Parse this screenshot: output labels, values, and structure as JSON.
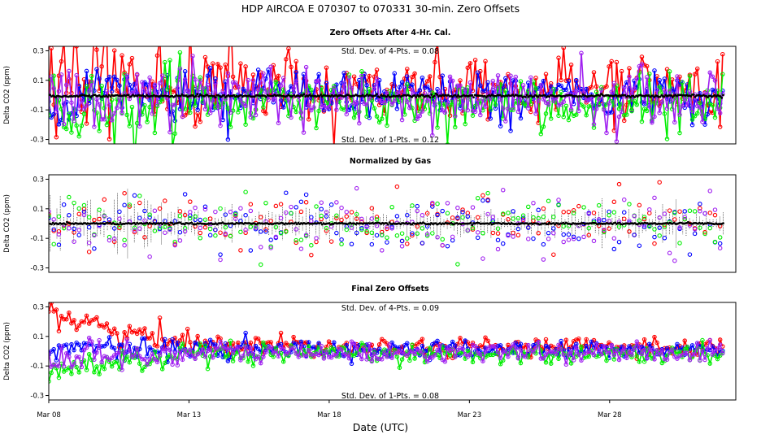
{
  "chart_data": {
    "type": "scatter",
    "title": "HDP   AIRCOA E   070307 to 070331   30-min. Zero Offsets",
    "xlabel": "Date (UTC)",
    "xlim": [
      8.0,
      32.5
    ],
    "x_ticks": [
      8,
      13,
      18,
      23,
      28
    ],
    "x_tick_labels": [
      "Mar 08",
      "Mar 13",
      "Mar 18",
      "Mar 23",
      "Mar 28"
    ],
    "series_colors": {
      "red": "#ff0000",
      "blue": "#0000ff",
      "green": "#00ee00",
      "purple": "#a020f0",
      "black": "#000000"
    },
    "panels": [
      {
        "title": "Zero Offsets After 4-Hr. Cal.",
        "ylabel": "Delta CO2 (ppm)",
        "ylim": [
          -0.33,
          0.33
        ],
        "y_ticks": [
          -0.3,
          -0.1,
          0.1,
          0.3
        ],
        "y_tick_labels": [
          "-0.3",
          "-0.1",
          "0.1",
          "0.3"
        ],
        "annotations": [
          "Std. Dev. of 4-Pts. = 0.08",
          "Std. Dev. of 1-Pts. = 0.12"
        ],
        "series": [
          {
            "name": "red",
            "spread": 0.11,
            "offset": 0.05,
            "sd_start": 0.22
          },
          {
            "name": "blue",
            "spread": 0.08,
            "offset": 0.0,
            "sd_start": 0.1
          },
          {
            "name": "green",
            "spread": 0.09,
            "offset": -0.06,
            "sd_start": 0.16
          },
          {
            "name": "purple",
            "spread": 0.09,
            "offset": -0.02,
            "sd_start": 0.12
          },
          {
            "name": "black",
            "spread": 0.004,
            "offset": -0.005,
            "sd_start": 0.004
          }
        ]
      },
      {
        "title": "Normalized by Gas",
        "ylabel": "Delta CO2 (ppm)",
        "ylim": [
          -0.33,
          0.33
        ],
        "y_ticks": [
          -0.3,
          -0.1,
          0.1,
          0.3
        ],
        "y_tick_labels": [
          "-0.3",
          "-0.1",
          "0.1",
          "0.3"
        ],
        "annotations": [],
        "series": [
          {
            "name": "red",
            "spread": 0.1,
            "offset": 0.0,
            "sd_start": 0.1
          },
          {
            "name": "blue",
            "spread": 0.1,
            "offset": 0.0,
            "sd_start": 0.1
          },
          {
            "name": "green",
            "spread": 0.1,
            "offset": 0.0,
            "sd_start": 0.1
          },
          {
            "name": "purple",
            "spread": 0.1,
            "offset": 0.0,
            "sd_start": 0.1
          },
          {
            "name": "black",
            "spread": 0.003,
            "offset": 0.0,
            "sd_start": 0.003
          }
        ]
      },
      {
        "title": "Final Zero Offsets",
        "ylabel": "Delta CO2 (ppm)",
        "ylim": [
          -0.33,
          0.33
        ],
        "y_ticks": [
          -0.3,
          -0.1,
          0.1,
          0.3
        ],
        "y_tick_labels": [
          "-0.3",
          "-0.1",
          "0.1",
          "0.3"
        ],
        "annotations": [
          "Std. Dev. of 4-Pts. = 0.09",
          "Std. Dev. of 1-Pts. = 0.08"
        ],
        "series": [
          {
            "name": "red",
            "spread": 0.03,
            "offset": 0.03,
            "start_offset": 0.3,
            "sd_start": 0.05
          },
          {
            "name": "blue",
            "spread": 0.03,
            "offset": 0.01,
            "start_offset": 0.03,
            "sd_start": 0.04
          },
          {
            "name": "green",
            "spread": 0.03,
            "offset": -0.02,
            "start_offset": -0.16,
            "sd_start": 0.05
          },
          {
            "name": "purple",
            "spread": 0.03,
            "offset": -0.01,
            "start_offset": -0.05,
            "sd_start": 0.06
          }
        ]
      }
    ]
  }
}
